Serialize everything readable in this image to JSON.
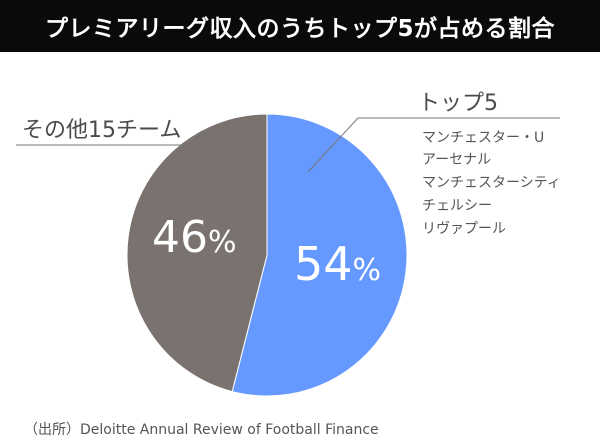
{
  "title": "プレミアリーグ収入のうちトップ5が占める割合",
  "source": "（出所）Deloitte Annual Review of Football Finance",
  "chart_data": {
    "type": "pie",
    "slices": [
      {
        "name": "トップ5",
        "value": 54,
        "value_label": "54",
        "unit": "%",
        "color": "#6699ff",
        "members": [
          "マンチェスター・U",
          "アーセナル",
          "マンチェスターシティ",
          "チェルシー",
          "リヴァプール"
        ]
      },
      {
        "name": "その他15チーム",
        "value": 46,
        "value_label": "46",
        "unit": "%",
        "color": "#7a726e",
        "members": []
      }
    ],
    "start_angle": "12 o'clock",
    "direction": "clockwise"
  }
}
